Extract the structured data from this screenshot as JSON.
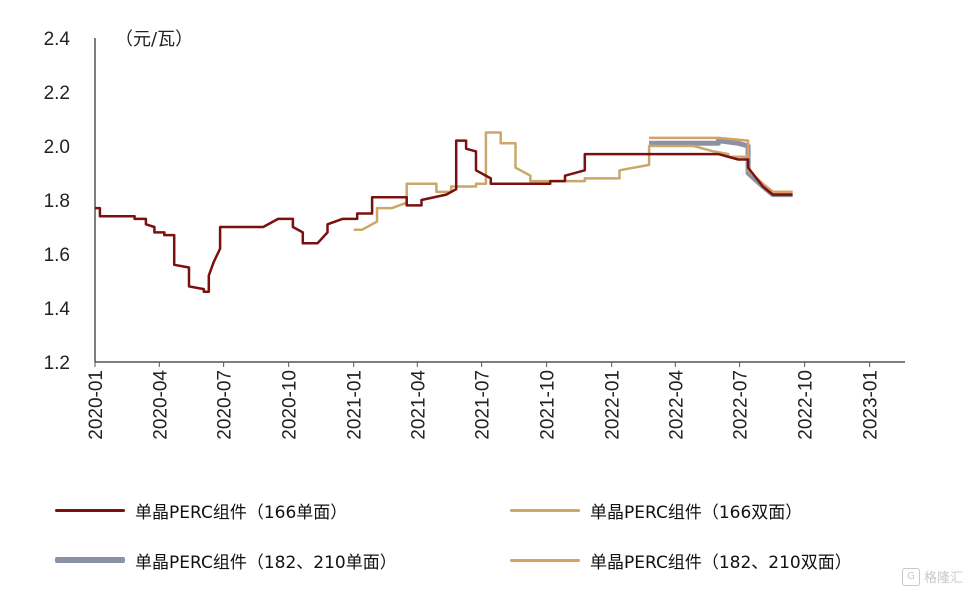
{
  "chart_data": {
    "type": "line",
    "unit_label": "（元/瓦）",
    "ylim": [
      1.2,
      2.4
    ],
    "y_ticks": [
      "2.4",
      "2.2",
      "2.0",
      "1.8",
      "1.6",
      "1.4",
      "1.2"
    ],
    "x_ticks": [
      "2020-01",
      "2020-04",
      "2020-07",
      "2020-10",
      "2021-01",
      "2021-04",
      "2021-07",
      "2021-10",
      "2022-01",
      "2022-04",
      "2022-07",
      "2022-10",
      "2023-01"
    ],
    "xlim": [
      "2020-01-01",
      "2023-02-20"
    ],
    "grid": false,
    "legend_position": "bottom",
    "series": [
      {
        "name": "单晶PERC组件（166单面）",
        "color": "#7a1010",
        "points": [
          [
            "2020-01-01",
            1.77
          ],
          [
            "2020-01-08",
            1.77
          ],
          [
            "2020-01-08",
            1.74
          ],
          [
            "2020-02-26",
            1.74
          ],
          [
            "2020-02-26",
            1.73
          ],
          [
            "2020-03-13",
            1.73
          ],
          [
            "2020-03-13",
            1.71
          ],
          [
            "2020-03-25",
            1.7
          ],
          [
            "2020-03-25",
            1.68
          ],
          [
            "2020-04-08",
            1.68
          ],
          [
            "2020-04-08",
            1.67
          ],
          [
            "2020-04-22",
            1.67
          ],
          [
            "2020-04-22",
            1.56
          ],
          [
            "2020-05-13",
            1.55
          ],
          [
            "2020-05-13",
            1.48
          ],
          [
            "2020-06-03",
            1.47
          ],
          [
            "2020-06-03",
            1.46
          ],
          [
            "2020-06-10",
            1.46
          ],
          [
            "2020-06-10",
            1.52
          ],
          [
            "2020-06-17",
            1.57
          ],
          [
            "2020-06-26",
            1.62
          ],
          [
            "2020-06-26",
            1.7
          ],
          [
            "2020-08-26",
            1.7
          ],
          [
            "2020-09-16",
            1.73
          ],
          [
            "2020-10-07",
            1.73
          ],
          [
            "2020-10-07",
            1.7
          ],
          [
            "2020-10-21",
            1.68
          ],
          [
            "2020-10-21",
            1.64
          ],
          [
            "2020-11-11",
            1.64
          ],
          [
            "2020-11-25",
            1.68
          ],
          [
            "2020-11-25",
            1.71
          ],
          [
            "2020-12-16",
            1.73
          ],
          [
            "2021-01-06",
            1.73
          ],
          [
            "2021-01-06",
            1.75
          ],
          [
            "2021-01-27",
            1.75
          ],
          [
            "2021-01-27",
            1.81
          ],
          [
            "2021-03-17",
            1.81
          ],
          [
            "2021-03-17",
            1.78
          ],
          [
            "2021-04-07",
            1.78
          ],
          [
            "2021-04-07",
            1.8
          ],
          [
            "2021-05-12",
            1.82
          ],
          [
            "2021-05-26",
            1.84
          ],
          [
            "2021-05-26",
            2.02
          ],
          [
            "2021-06-09",
            2.02
          ],
          [
            "2021-06-09",
            1.99
          ],
          [
            "2021-06-23",
            1.98
          ],
          [
            "2021-06-23",
            1.91
          ],
          [
            "2021-07-14",
            1.88
          ],
          [
            "2021-07-14",
            1.86
          ],
          [
            "2021-10-06",
            1.86
          ],
          [
            "2021-10-06",
            1.87
          ],
          [
            "2021-10-27",
            1.87
          ],
          [
            "2021-10-27",
            1.89
          ],
          [
            "2021-11-24",
            1.91
          ],
          [
            "2021-11-24",
            1.97
          ],
          [
            "2022-06-01",
            1.97
          ],
          [
            "2022-06-29",
            1.95
          ],
          [
            "2022-07-13",
            1.95
          ],
          [
            "2022-07-13",
            1.92
          ],
          [
            "2022-08-03",
            1.85
          ],
          [
            "2022-08-17",
            1.82
          ],
          [
            "2022-09-14",
            1.82
          ]
        ]
      },
      {
        "name": "单晶PERC组件（166双面）",
        "color": "#c9a86a",
        "points": [
          [
            "2021-01-01",
            1.69
          ],
          [
            "2021-01-13",
            1.69
          ],
          [
            "2021-02-03",
            1.72
          ],
          [
            "2021-02-03",
            1.77
          ],
          [
            "2021-02-24",
            1.77
          ],
          [
            "2021-03-17",
            1.79
          ],
          [
            "2021-03-17",
            1.86
          ],
          [
            "2021-04-28",
            1.86
          ],
          [
            "2021-04-28",
            1.83
          ],
          [
            "2021-05-19",
            1.83
          ],
          [
            "2021-05-19",
            1.85
          ],
          [
            "2021-06-23",
            1.85
          ],
          [
            "2021-06-23",
            1.86
          ],
          [
            "2021-07-07",
            1.86
          ],
          [
            "2021-07-07",
            2.05
          ],
          [
            "2021-07-28",
            2.05
          ],
          [
            "2021-07-28",
            2.01
          ],
          [
            "2021-08-18",
            2.01
          ],
          [
            "2021-08-18",
            1.92
          ],
          [
            "2021-09-08",
            1.89
          ],
          [
            "2021-09-08",
            1.87
          ],
          [
            "2021-11-24",
            1.87
          ],
          [
            "2021-11-24",
            1.88
          ],
          [
            "2022-01-12",
            1.88
          ],
          [
            "2022-01-12",
            1.91
          ],
          [
            "2022-02-23",
            1.93
          ],
          [
            "2022-02-23",
            2.0
          ],
          [
            "2022-04-27",
            2.0
          ],
          [
            "2022-05-25",
            1.98
          ],
          [
            "2022-06-15",
            1.97
          ],
          [
            "2022-06-15",
            1.96
          ],
          [
            "2022-07-13",
            1.96
          ],
          [
            "2022-07-13",
            1.91
          ],
          [
            "2022-08-03",
            1.86
          ],
          [
            "2022-08-17",
            1.83
          ],
          [
            "2022-09-14",
            1.83
          ]
        ]
      },
      {
        "name": "单晶PERC组件（182、210单面）",
        "color": "#8a92a6",
        "points": [
          [
            "2022-02-23",
            2.01
          ],
          [
            "2022-06-01",
            2.01
          ],
          [
            "2022-06-01",
            2.02
          ],
          [
            "2022-06-29",
            2.01
          ],
          [
            "2022-07-13",
            2.0
          ],
          [
            "2022-07-13",
            1.9
          ],
          [
            "2022-08-03",
            1.85
          ],
          [
            "2022-08-17",
            1.82
          ],
          [
            "2022-09-14",
            1.82
          ]
        ]
      },
      {
        "name": "单晶PERC组件（182、210双面）",
        "color": "#d9a066",
        "points": [
          [
            "2022-02-23",
            2.03
          ],
          [
            "2022-06-01",
            2.03
          ],
          [
            "2022-07-13",
            2.02
          ],
          [
            "2022-07-13",
            1.91
          ],
          [
            "2022-08-03",
            1.86
          ],
          [
            "2022-08-17",
            1.83
          ],
          [
            "2022-09-14",
            1.83
          ]
        ]
      }
    ]
  },
  "legend": {
    "items": [
      {
        "label": "单晶PERC组件（166单面）",
        "color": "#7a1010"
      },
      {
        "label": "单晶PERC组件（166双面）",
        "color": "#c9a86a"
      },
      {
        "label": "单晶PERC组件（182、210单面）",
        "color": "#8a92a6"
      },
      {
        "label": "单晶PERC组件（182、210双面）",
        "color": "#d9a066"
      }
    ]
  },
  "watermark": {
    "text": "格隆汇",
    "icon": "G"
  }
}
